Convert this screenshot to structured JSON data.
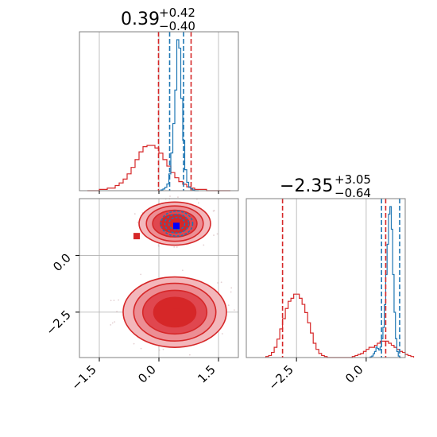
{
  "chart_data": {
    "type": "corner",
    "colors": {
      "red": "#d62728",
      "blue": "#1f77b4",
      "grid": "#b0b0b0"
    },
    "param1": {
      "title": {
        "median": "0.39",
        "plus": "+0.42",
        "minus": "−0.40"
      },
      "range": [
        -2.0,
        2.0
      ],
      "ticks": [
        "−1.5",
        "0.0",
        "1.5"
      ],
      "tick_values": [
        -1.5,
        0.0,
        1.5
      ],
      "red_quantiles": [
        -0.01,
        0.39,
        0.81
      ],
      "blue_quantiles": [
        0.27,
        0.39,
        0.62
      ],
      "red_hist": {
        "start": -1.8,
        "step": 0.1,
        "counts": [
          0,
          0,
          0,
          1,
          1,
          2,
          2,
          4,
          6,
          9,
          13,
          18,
          24,
          30,
          34,
          35,
          35,
          33,
          29,
          24,
          19,
          14,
          10,
          7,
          5,
          3,
          2,
          1,
          1,
          1,
          0,
          0,
          0,
          0,
          0,
          0
        ]
      },
      "blue_hist": {
        "start": 0.0,
        "step": 0.05,
        "counts": [
          0,
          1,
          2,
          4,
          8,
          20,
          45,
          80,
          120,
          180,
          170,
          110,
          60,
          25,
          10,
          4,
          2,
          1,
          0,
          0
        ]
      }
    },
    "param2": {
      "title": {
        "median": "−2.35",
        "plus": "+3.05",
        "minus": "−0.64"
      },
      "range": [
        -4.3,
        1.4
      ],
      "ticks": [
        "−2.5",
        "0.0"
      ],
      "tick_values": [
        -2.5,
        0.0
      ],
      "red_quantiles": [
        -3.0,
        -2.35,
        0.7
      ],
      "blue_quantiles": [
        0.55,
        0.75,
        1.2
      ],
      "red_hist": {
        "start": -3.6,
        "step": 0.1,
        "counts": [
          1,
          2,
          5,
          10,
          18,
          28,
          38,
          48,
          55,
          58,
          62,
          62,
          58,
          52,
          44,
          34,
          24,
          14,
          8,
          4,
          2,
          1,
          0,
          0,
          0,
          0,
          0,
          0,
          0,
          0,
          0,
          1,
          2,
          3,
          4,
          6,
          8,
          10,
          10,
          12,
          14,
          16,
          16,
          16,
          14,
          12,
          10,
          8,
          6,
          5,
          3,
          2,
          1
        ]
      },
      "blue_hist": {
        "start": 0.1,
        "step": 0.05,
        "counts": [
          0,
          1,
          2,
          5,
          8,
          14,
          12,
          10,
          14,
          25,
          40,
          70,
          110,
          150,
          190,
          200,
          170,
          110,
          60,
          25,
          8,
          2,
          0
        ]
      }
    },
    "joint": {
      "y_range": [
        -4.5,
        2.5
      ],
      "y_ticks": [
        "0.0",
        "−2.5"
      ],
      "y_tick_values": [
        0.0,
        -2.5
      ],
      "blue_markers": [
        {
          "x": 0.44,
          "y": 1.3
        }
      ],
      "red_markers": [
        {
          "x": -0.56,
          "y": 0.85
        },
        {
          "x": 0.44,
          "y": 1.3
        },
        {
          "x": 0.44,
          "y": -2.5
        }
      ],
      "red_modes": [
        {
          "cx": 0.4,
          "cy": 1.4,
          "rx": 0.9,
          "ry": 0.95
        },
        {
          "cx": 0.4,
          "cy": -2.5,
          "rx": 1.3,
          "ry": 1.55
        }
      ],
      "blue_mode": {
        "cx": 0.45,
        "cy": 1.4,
        "rx": 0.4,
        "ry": 0.55
      }
    },
    "xlabel": "",
    "ylabel": ""
  }
}
